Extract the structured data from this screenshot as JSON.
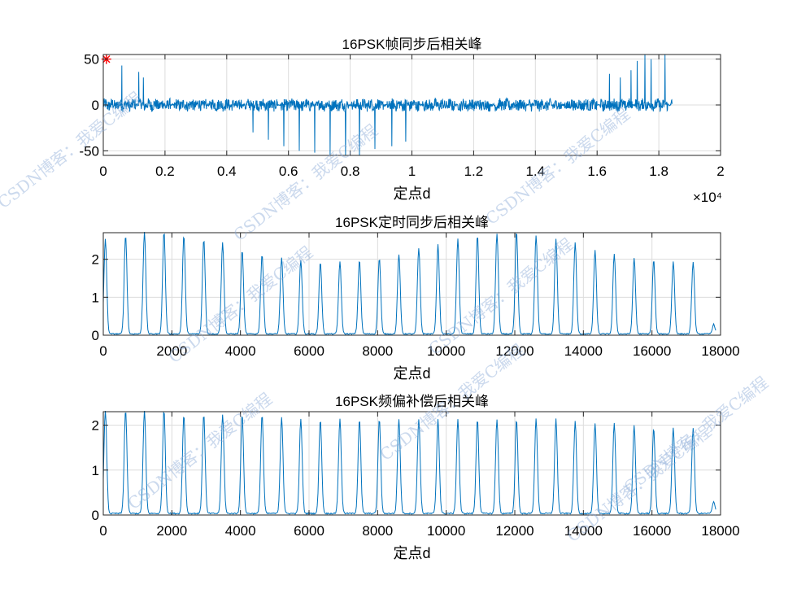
{
  "chart_data": [
    {
      "type": "line",
      "title": "16PSK帧同步后相关峰",
      "xlabel": "定点d",
      "ylabel": "",
      "xlim": [
        0,
        20000
      ],
      "ylim": [
        -55,
        55
      ],
      "xticks": [
        0,
        2000,
        4000,
        6000,
        8000,
        10000,
        12000,
        14000,
        16000,
        18000,
        20000
      ],
      "xtick_labels": [
        "0",
        "0.2",
        "0.4",
        "0.6",
        "0.8",
        "1",
        "1.2",
        "1.4",
        "1.6",
        "1.8",
        "2"
      ],
      "x_exponent_label": "×10⁴",
      "yticks": [
        -50,
        0,
        50
      ],
      "ytick_labels": [
        "-50",
        "0",
        "50"
      ],
      "grid": true,
      "line_color": "#0072BD",
      "marker": {
        "x": 100,
        "y": 50,
        "color": "#FF0000",
        "shape": "asterisk"
      },
      "noise_amplitude": 6,
      "x_extent": 18430,
      "spikes_up": [
        [
          600,
          43
        ],
        [
          1150,
          36
        ],
        [
          1300,
          30
        ],
        [
          16400,
          34
        ],
        [
          16750,
          30
        ],
        [
          17100,
          38
        ],
        [
          17300,
          48
        ],
        [
          17550,
          55
        ],
        [
          17750,
          50
        ],
        [
          18200,
          55
        ]
      ],
      "spikes_down": [
        [
          4850,
          -30
        ],
        [
          5350,
          -38
        ],
        [
          5850,
          -45
        ],
        [
          6350,
          -50
        ],
        [
          6850,
          -52
        ],
        [
          7350,
          -55
        ],
        [
          7850,
          -55
        ],
        [
          8300,
          -55
        ],
        [
          8800,
          -48
        ],
        [
          9350,
          -45
        ],
        [
          9800,
          -40
        ]
      ]
    },
    {
      "type": "line",
      "title": "16PSK定时同步后相关峰",
      "xlabel": "定点d",
      "ylabel": "",
      "xlim": [
        0,
        18000
      ],
      "ylim": [
        0,
        2.7
      ],
      "xticks": [
        0,
        2000,
        4000,
        6000,
        8000,
        10000,
        12000,
        14000,
        16000,
        18000
      ],
      "xtick_labels": [
        "0",
        "2000",
        "4000",
        "6000",
        "8000",
        "10000",
        "12000",
        "14000",
        "16000",
        "18000"
      ],
      "yticks": [
        0,
        1,
        2
      ],
      "ytick_labels": [
        "0",
        "1",
        "2"
      ],
      "grid": true,
      "line_color": "#0072BD",
      "peaks": [
        [
          60,
          2.5
        ],
        [
          650,
          2.6
        ],
        [
          1200,
          2.7
        ],
        [
          1770,
          2.7
        ],
        [
          2350,
          2.6
        ],
        [
          2930,
          2.5
        ],
        [
          3480,
          2.4
        ],
        [
          4050,
          2.2
        ],
        [
          4630,
          2.1
        ],
        [
          5200,
          2.0
        ],
        [
          5760,
          1.95
        ],
        [
          6330,
          1.9
        ],
        [
          6900,
          1.9
        ],
        [
          7470,
          1.95
        ],
        [
          8050,
          2.0
        ],
        [
          8620,
          2.1
        ],
        [
          9200,
          2.25
        ],
        [
          9760,
          2.35
        ],
        [
          10340,
          2.5
        ],
        [
          10910,
          2.6
        ],
        [
          11480,
          2.65
        ],
        [
          12050,
          2.7
        ],
        [
          12620,
          2.6
        ],
        [
          13200,
          2.5
        ],
        [
          13760,
          2.4
        ],
        [
          14340,
          2.2
        ],
        [
          14900,
          2.1
        ],
        [
          15480,
          2.0
        ],
        [
          16050,
          1.95
        ],
        [
          16620,
          1.9
        ],
        [
          17200,
          1.9
        ],
        [
          17800,
          0.25
        ]
      ]
    },
    {
      "type": "line",
      "title": "16PSK频偏补偿后相关峰",
      "xlabel": "定点d",
      "ylabel": "",
      "xlim": [
        0,
        18000
      ],
      "ylim": [
        0,
        2.3
      ],
      "xticks": [
        0,
        2000,
        4000,
        6000,
        8000,
        10000,
        12000,
        14000,
        16000,
        18000
      ],
      "xtick_labels": [
        "0",
        "2000",
        "4000",
        "6000",
        "8000",
        "10000",
        "12000",
        "14000",
        "16000",
        "18000"
      ],
      "yticks": [
        0,
        1,
        2
      ],
      "ytick_labels": [
        "0",
        "1",
        "2"
      ],
      "grid": true,
      "line_color": "#0072BD",
      "peaks": [
        [
          60,
          2.3
        ],
        [
          650,
          2.3
        ],
        [
          1200,
          2.3
        ],
        [
          1770,
          2.3
        ],
        [
          2350,
          2.2
        ],
        [
          2930,
          2.2
        ],
        [
          3480,
          2.2
        ],
        [
          4050,
          2.2
        ],
        [
          4630,
          2.2
        ],
        [
          5200,
          2.15
        ],
        [
          5760,
          2.1
        ],
        [
          6330,
          2.1
        ],
        [
          6900,
          2.1
        ],
        [
          7470,
          2.1
        ],
        [
          8050,
          2.1
        ],
        [
          8620,
          2.1
        ],
        [
          9200,
          2.1
        ],
        [
          9760,
          2.1
        ],
        [
          10340,
          2.1
        ],
        [
          10910,
          2.1
        ],
        [
          11480,
          2.1
        ],
        [
          12050,
          2.1
        ],
        [
          12620,
          2.1
        ],
        [
          13200,
          2.1
        ],
        [
          13760,
          2.05
        ],
        [
          14340,
          2.0
        ],
        [
          14900,
          2.0
        ],
        [
          15480,
          1.95
        ],
        [
          16050,
          1.9
        ],
        [
          16620,
          1.9
        ],
        [
          17200,
          1.9
        ],
        [
          17800,
          0.25
        ]
      ]
    }
  ],
  "watermark": {
    "text": "CSDN博客：我爱C编程",
    "color": "rgba(140,170,215,0.45)"
  }
}
